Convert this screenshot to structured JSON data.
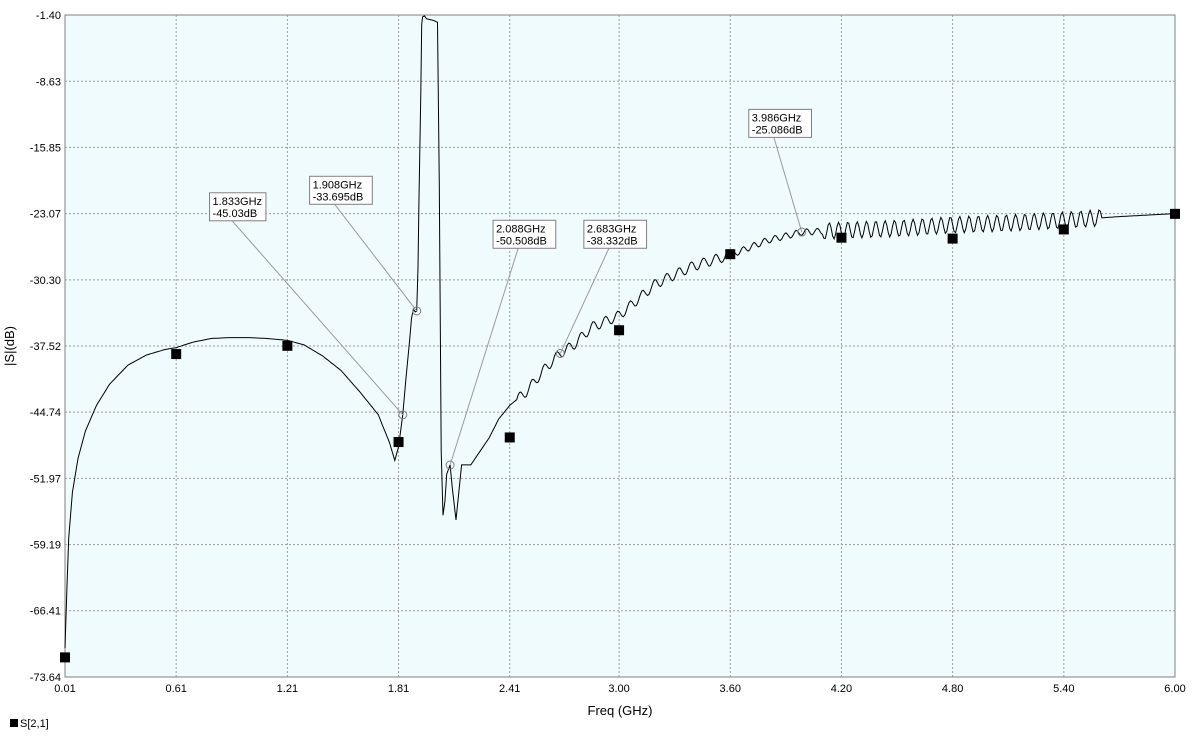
{
  "chart_data": {
    "type": "line",
    "xlabel": "Freq (GHz)",
    "ylabel": "|S|(dB)",
    "xlim": [
      0.01,
      6.0
    ],
    "ylim": [
      -73.64,
      -1.4
    ],
    "x_ticks": [
      0.01,
      0.61,
      1.21,
      1.81,
      2.41,
      3.0,
      3.6,
      4.2,
      4.8,
      5.4,
      6.0
    ],
    "x_tick_labels": [
      "0.01",
      "0.61",
      "1.21",
      "1.81",
      "2.41",
      "3.00",
      "3.60",
      "4.20",
      "4.80",
      "5.40",
      "6.00"
    ],
    "y_ticks": [
      -1.4,
      -8.63,
      -15.85,
      -23.07,
      -30.3,
      -37.52,
      -44.74,
      -51.97,
      -59.19,
      -66.41,
      -73.64
    ],
    "y_tick_labels": [
      "-1.40",
      "-8.63",
      "-15.85",
      "-23.07",
      "-30.30",
      "-37.52",
      "-44.74",
      "-51.97",
      "-59.19",
      "-66.41",
      "-73.64"
    ],
    "grid": true,
    "legend_position": "bottom-left",
    "colors": {
      "plot_bg": "#f0fbfe",
      "grid": "#9a9a9a",
      "trace": "#000000",
      "marker_line": "#9a9a9a"
    },
    "series": [
      {
        "name": "S[2,1]",
        "x": [
          0.01,
          0.02,
          0.03,
          0.05,
          0.08,
          0.12,
          0.18,
          0.25,
          0.35,
          0.45,
          0.55,
          0.61,
          0.7,
          0.8,
          0.9,
          1.0,
          1.1,
          1.21,
          1.3,
          1.4,
          1.5,
          1.6,
          1.7,
          1.76,
          1.79,
          1.81,
          1.833,
          1.85,
          1.87,
          1.88,
          1.89,
          1.9,
          1.908,
          1.915,
          1.92,
          1.93,
          1.935,
          1.94,
          1.95,
          1.96,
          1.98,
          2.0,
          2.02,
          2.03,
          2.04,
          2.05,
          2.06,
          2.07,
          2.088,
          2.1,
          2.12,
          2.15,
          2.2,
          2.25,
          2.3,
          2.35,
          2.41,
          2.5,
          2.6,
          2.683,
          2.75,
          2.85,
          3.0,
          3.2,
          3.4,
          3.6,
          3.8,
          3.986,
          4.2,
          4.5,
          4.8,
          5.1,
          5.4,
          5.7,
          6.0
        ],
        "values": [
          -70.5,
          -64.0,
          -58.5,
          -53.5,
          -49.8,
          -46.8,
          -44.0,
          -41.7,
          -39.6,
          -38.5,
          -37.9,
          -37.7,
          -37.1,
          -36.7,
          -36.6,
          -36.6,
          -36.7,
          -36.9,
          -37.4,
          -38.6,
          -40.2,
          -42.5,
          -45.0,
          -48.0,
          -50.0,
          -48.5,
          -45.0,
          -41.0,
          -36.8,
          -34.5,
          -33.5,
          -33.8,
          -33.7,
          -29.0,
          -22.0,
          -10.0,
          -2.4,
          -1.6,
          -1.5,
          -1.8,
          -1.9,
          -2.0,
          -2.2,
          -20.0,
          -49.0,
          -56.0,
          -54.5,
          -51.5,
          -50.5,
          -53.0,
          -56.5,
          -50.5,
          -50.5,
          -49.0,
          -47.5,
          -45.5,
          -44.0,
          -42.5,
          -40.0,
          -38.3,
          -37.5,
          -35.5,
          -34.2,
          -30.7,
          -28.8,
          -27.6,
          -26.0,
          -25.1,
          -24.9,
          -24.7,
          -24.3,
          -24.1,
          -23.8,
          -23.4,
          -23.07
        ],
        "data_markers_x": [
          0.01,
          0.61,
          1.21,
          1.81,
          2.41,
          3.0,
          3.6,
          4.2,
          4.8,
          5.4,
          6.0
        ],
        "data_markers_y": [
          -71.5,
          -38.4,
          -37.5,
          -48.0,
          -47.5,
          -35.8,
          -27.5,
          -25.7,
          -25.8,
          -24.8,
          -23.1
        ]
      }
    ],
    "annotations": [
      {
        "x": 1.833,
        "y": -45.03,
        "line1": "1.833GHz",
        "line2": "-45.03dB",
        "label_x": 0.79,
        "label_y": -20.8
      },
      {
        "x": 1.908,
        "y": -33.695,
        "line1": "1.908GHz",
        "line2": "-33.695dB",
        "label_x": 1.33,
        "label_y": -19.0
      },
      {
        "x": 2.088,
        "y": -50.508,
        "line1": "2.088GHz",
        "line2": "-50.508dB",
        "label_x": 2.32,
        "label_y": -23.8
      },
      {
        "x": 2.683,
        "y": -38.332,
        "line1": "2.683GHz",
        "line2": "-38.332dB",
        "label_x": 2.81,
        "label_y": -23.8
      },
      {
        "x": 3.986,
        "y": -25.086,
        "line1": "3.986GHz",
        "line2": "-25.086dB",
        "label_x": 3.7,
        "label_y": -11.7
      }
    ]
  },
  "legend": {
    "items": [
      {
        "label": "S[2,1]"
      }
    ]
  }
}
